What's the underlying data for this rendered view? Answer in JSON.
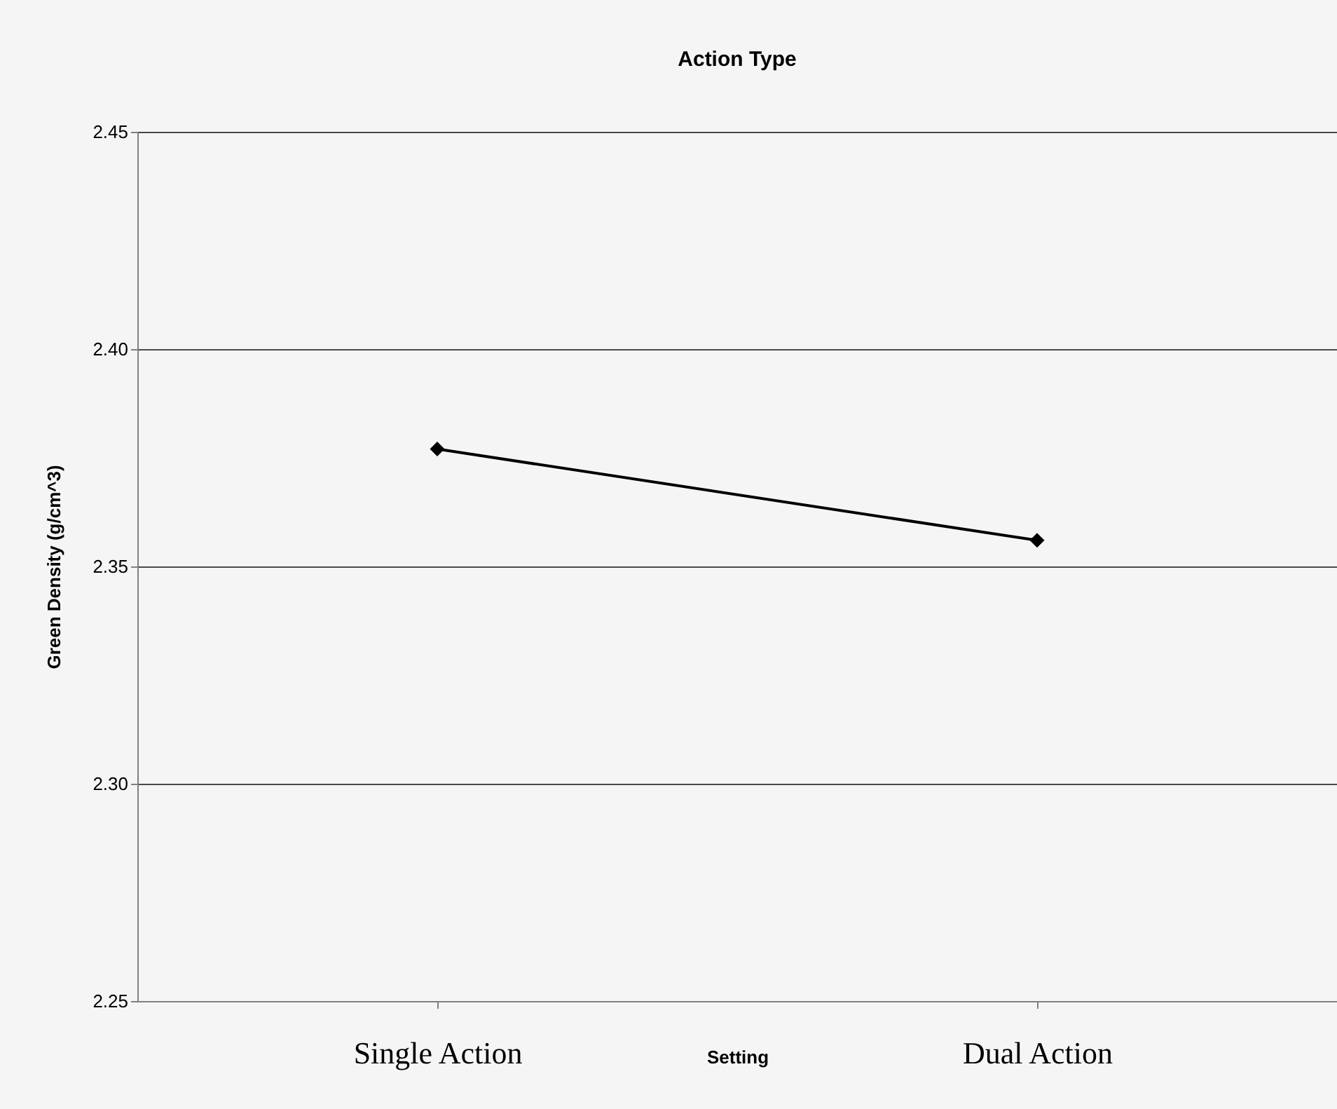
{
  "chart_data": {
    "type": "line",
    "title": "Action Type",
    "xlabel": "Setting",
    "ylabel": "Green Density (g/cm^3)",
    "categories": [
      "Single Action",
      "Dual Action"
    ],
    "series": [
      {
        "color": "#000000",
        "values": [
          2.377,
          2.356
        ]
      }
    ],
    "ylim": [
      2.25,
      2.45
    ],
    "yticks": [
      {
        "value": 2.25,
        "label": "2.25"
      },
      {
        "value": 2.3,
        "label": "2.30"
      },
      {
        "value": 2.35,
        "label": "2.35"
      },
      {
        "value": 2.4,
        "label": "2.40"
      },
      {
        "value": 2.45,
        "label": "2.45"
      }
    ],
    "grid": "y",
    "legend": false,
    "marker": "diamond",
    "line_style": "solid"
  }
}
